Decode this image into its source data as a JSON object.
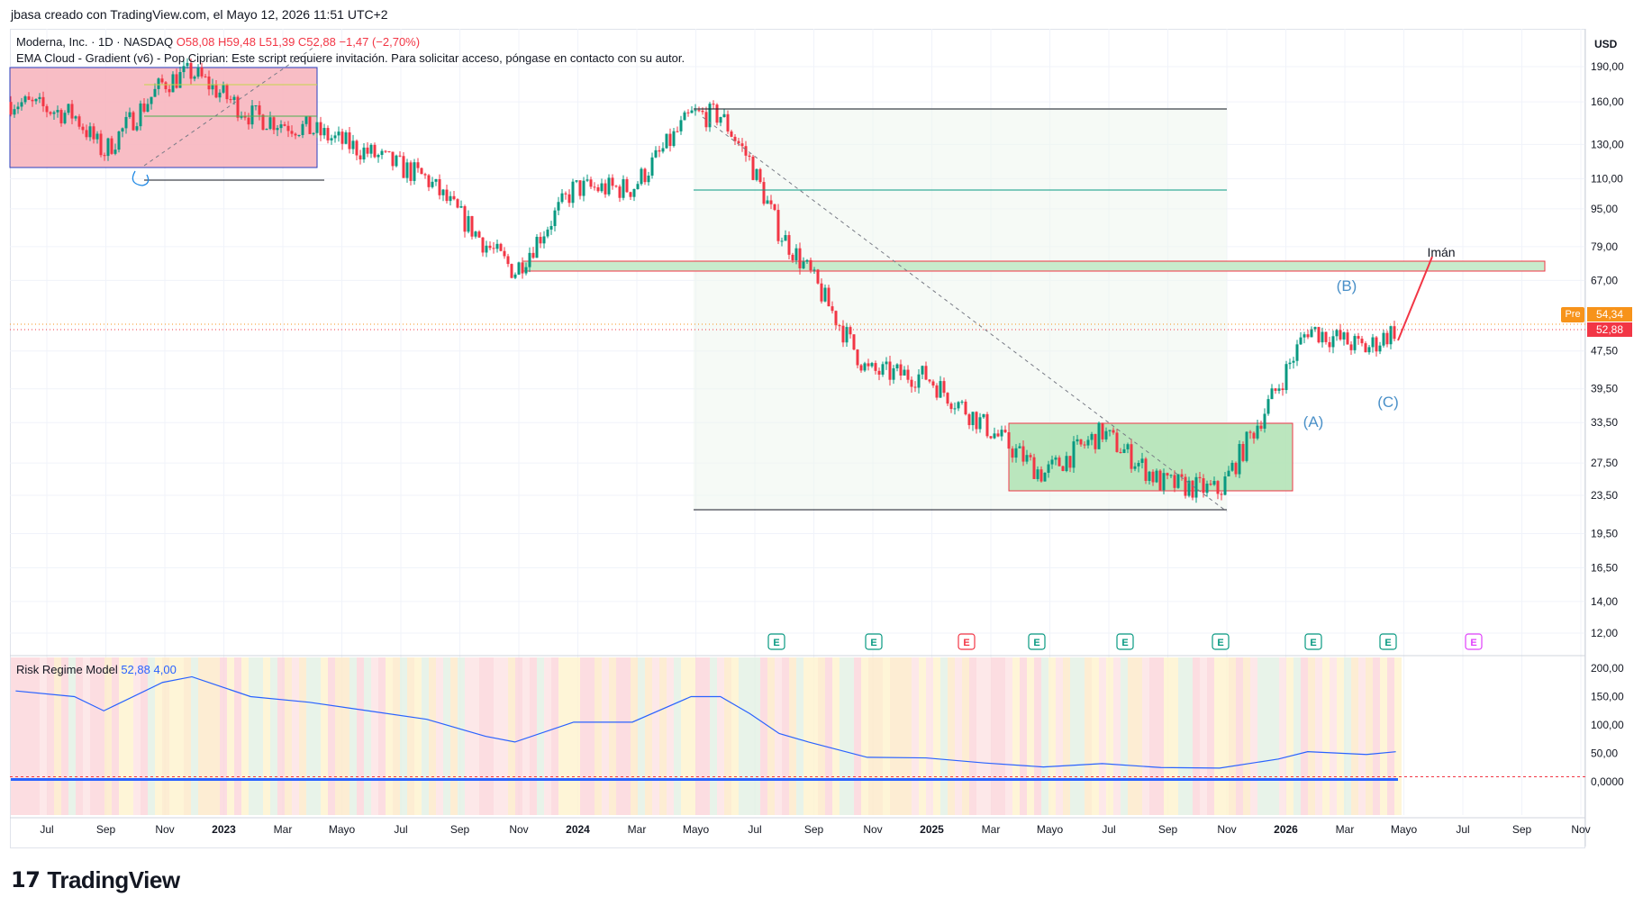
{
  "header": {
    "caption": "jbasa creado con TradingView.com, el Mayo 12, 2026 11:51 UTC+2"
  },
  "legend": {
    "symbol": "Moderna, Inc. · 1D · NASDAQ",
    "ohlc": "O58,08  H59,48  L51,39  C52,88  −1,47 (−2,70%)",
    "indicator": "EMA Cloud - Gradient (v6) - Pop Ciprian: Este script requiere invitación. Para solicitar acceso, póngase en contacto con su autor."
  },
  "currency": "USD",
  "price_badges": {
    "pre_label": "Pre",
    "pre_price": "54,34",
    "last_price": "52,88"
  },
  "oscillator": {
    "name": "Risk Regime Model",
    "value1": "52,88",
    "value2": "4,00"
  },
  "annotations": {
    "iman": "Imán",
    "wave_a": "(A)",
    "wave_b": "(B)",
    "wave_c": "(C)"
  },
  "earnings_marker": "E",
  "brand": {
    "name": "TradingView"
  },
  "colors": {
    "up": "#089981",
    "down": "#f23645",
    "accent": "#2962ff",
    "wave_label": "#4a90c8",
    "pink_zone": "#f7b6bf",
    "green_zone": "#c8ebcc",
    "badge_pre": "#f7931a"
  },
  "chart_data": {
    "type": "candlestick",
    "title": "Moderna, Inc. · 1D · NASDAQ",
    "y_scale": "log",
    "y_axis_ticks": [
      "190,00",
      "160,00",
      "130,00",
      "110,00",
      "95,00",
      "79,00",
      "67,00",
      "47,50",
      "39,50",
      "33,50",
      "27,50",
      "23,50",
      "19,50",
      "16,50",
      "14,00",
      "12,00"
    ],
    "x_axis_ticks": [
      "Jul",
      "Sep",
      "Nov",
      "2023",
      "Mar",
      "Mayo",
      "Jul",
      "Sep",
      "Nov",
      "2024",
      "Mar",
      "Mayo",
      "Jul",
      "Sep",
      "Nov",
      "2025",
      "Mar",
      "Mayo",
      "Jul",
      "Sep",
      "Nov",
      "2026",
      "Mar",
      "Mayo",
      "Jul",
      "Sep",
      "Nov"
    ],
    "last_close": 52.88,
    "pre_market": 54.34,
    "approx_close_path": [
      {
        "date": "2022-06",
        "close": 160
      },
      {
        "date": "2022-08",
        "close": 150
      },
      {
        "date": "2022-09",
        "close": 125
      },
      {
        "date": "2022-11",
        "close": 175
      },
      {
        "date": "2022-12",
        "close": 185
      },
      {
        "date": "2023-02",
        "close": 150
      },
      {
        "date": "2023-04",
        "close": 140
      },
      {
        "date": "2023-06",
        "close": 125
      },
      {
        "date": "2023-08",
        "close": 110
      },
      {
        "date": "2023-10",
        "close": 80
      },
      {
        "date": "2023-11",
        "close": 70
      },
      {
        "date": "2024-01",
        "close": 105
      },
      {
        "date": "2024-03",
        "close": 105
      },
      {
        "date": "2024-05",
        "close": 150
      },
      {
        "date": "2024-06",
        "close": 150
      },
      {
        "date": "2024-07",
        "close": 120
      },
      {
        "date": "2024-08",
        "close": 85
      },
      {
        "date": "2024-09",
        "close": 70
      },
      {
        "date": "2024-11",
        "close": 43
      },
      {
        "date": "2025-01",
        "close": 42
      },
      {
        "date": "2025-03",
        "close": 33
      },
      {
        "date": "2025-05",
        "close": 26
      },
      {
        "date": "2025-07",
        "close": 32
      },
      {
        "date": "2025-09",
        "close": 25
      },
      {
        "date": "2025-11",
        "close": 24
      },
      {
        "date": "2026-01",
        "close": 40
      },
      {
        "date": "2026-02",
        "close": 53
      },
      {
        "date": "2026-04",
        "close": 48
      },
      {
        "date": "2026-05",
        "close": 52.88
      }
    ],
    "oscillator_axis_ticks": [
      "200,00",
      "150,00",
      "100,00",
      "50,00",
      "0,0000"
    ]
  }
}
